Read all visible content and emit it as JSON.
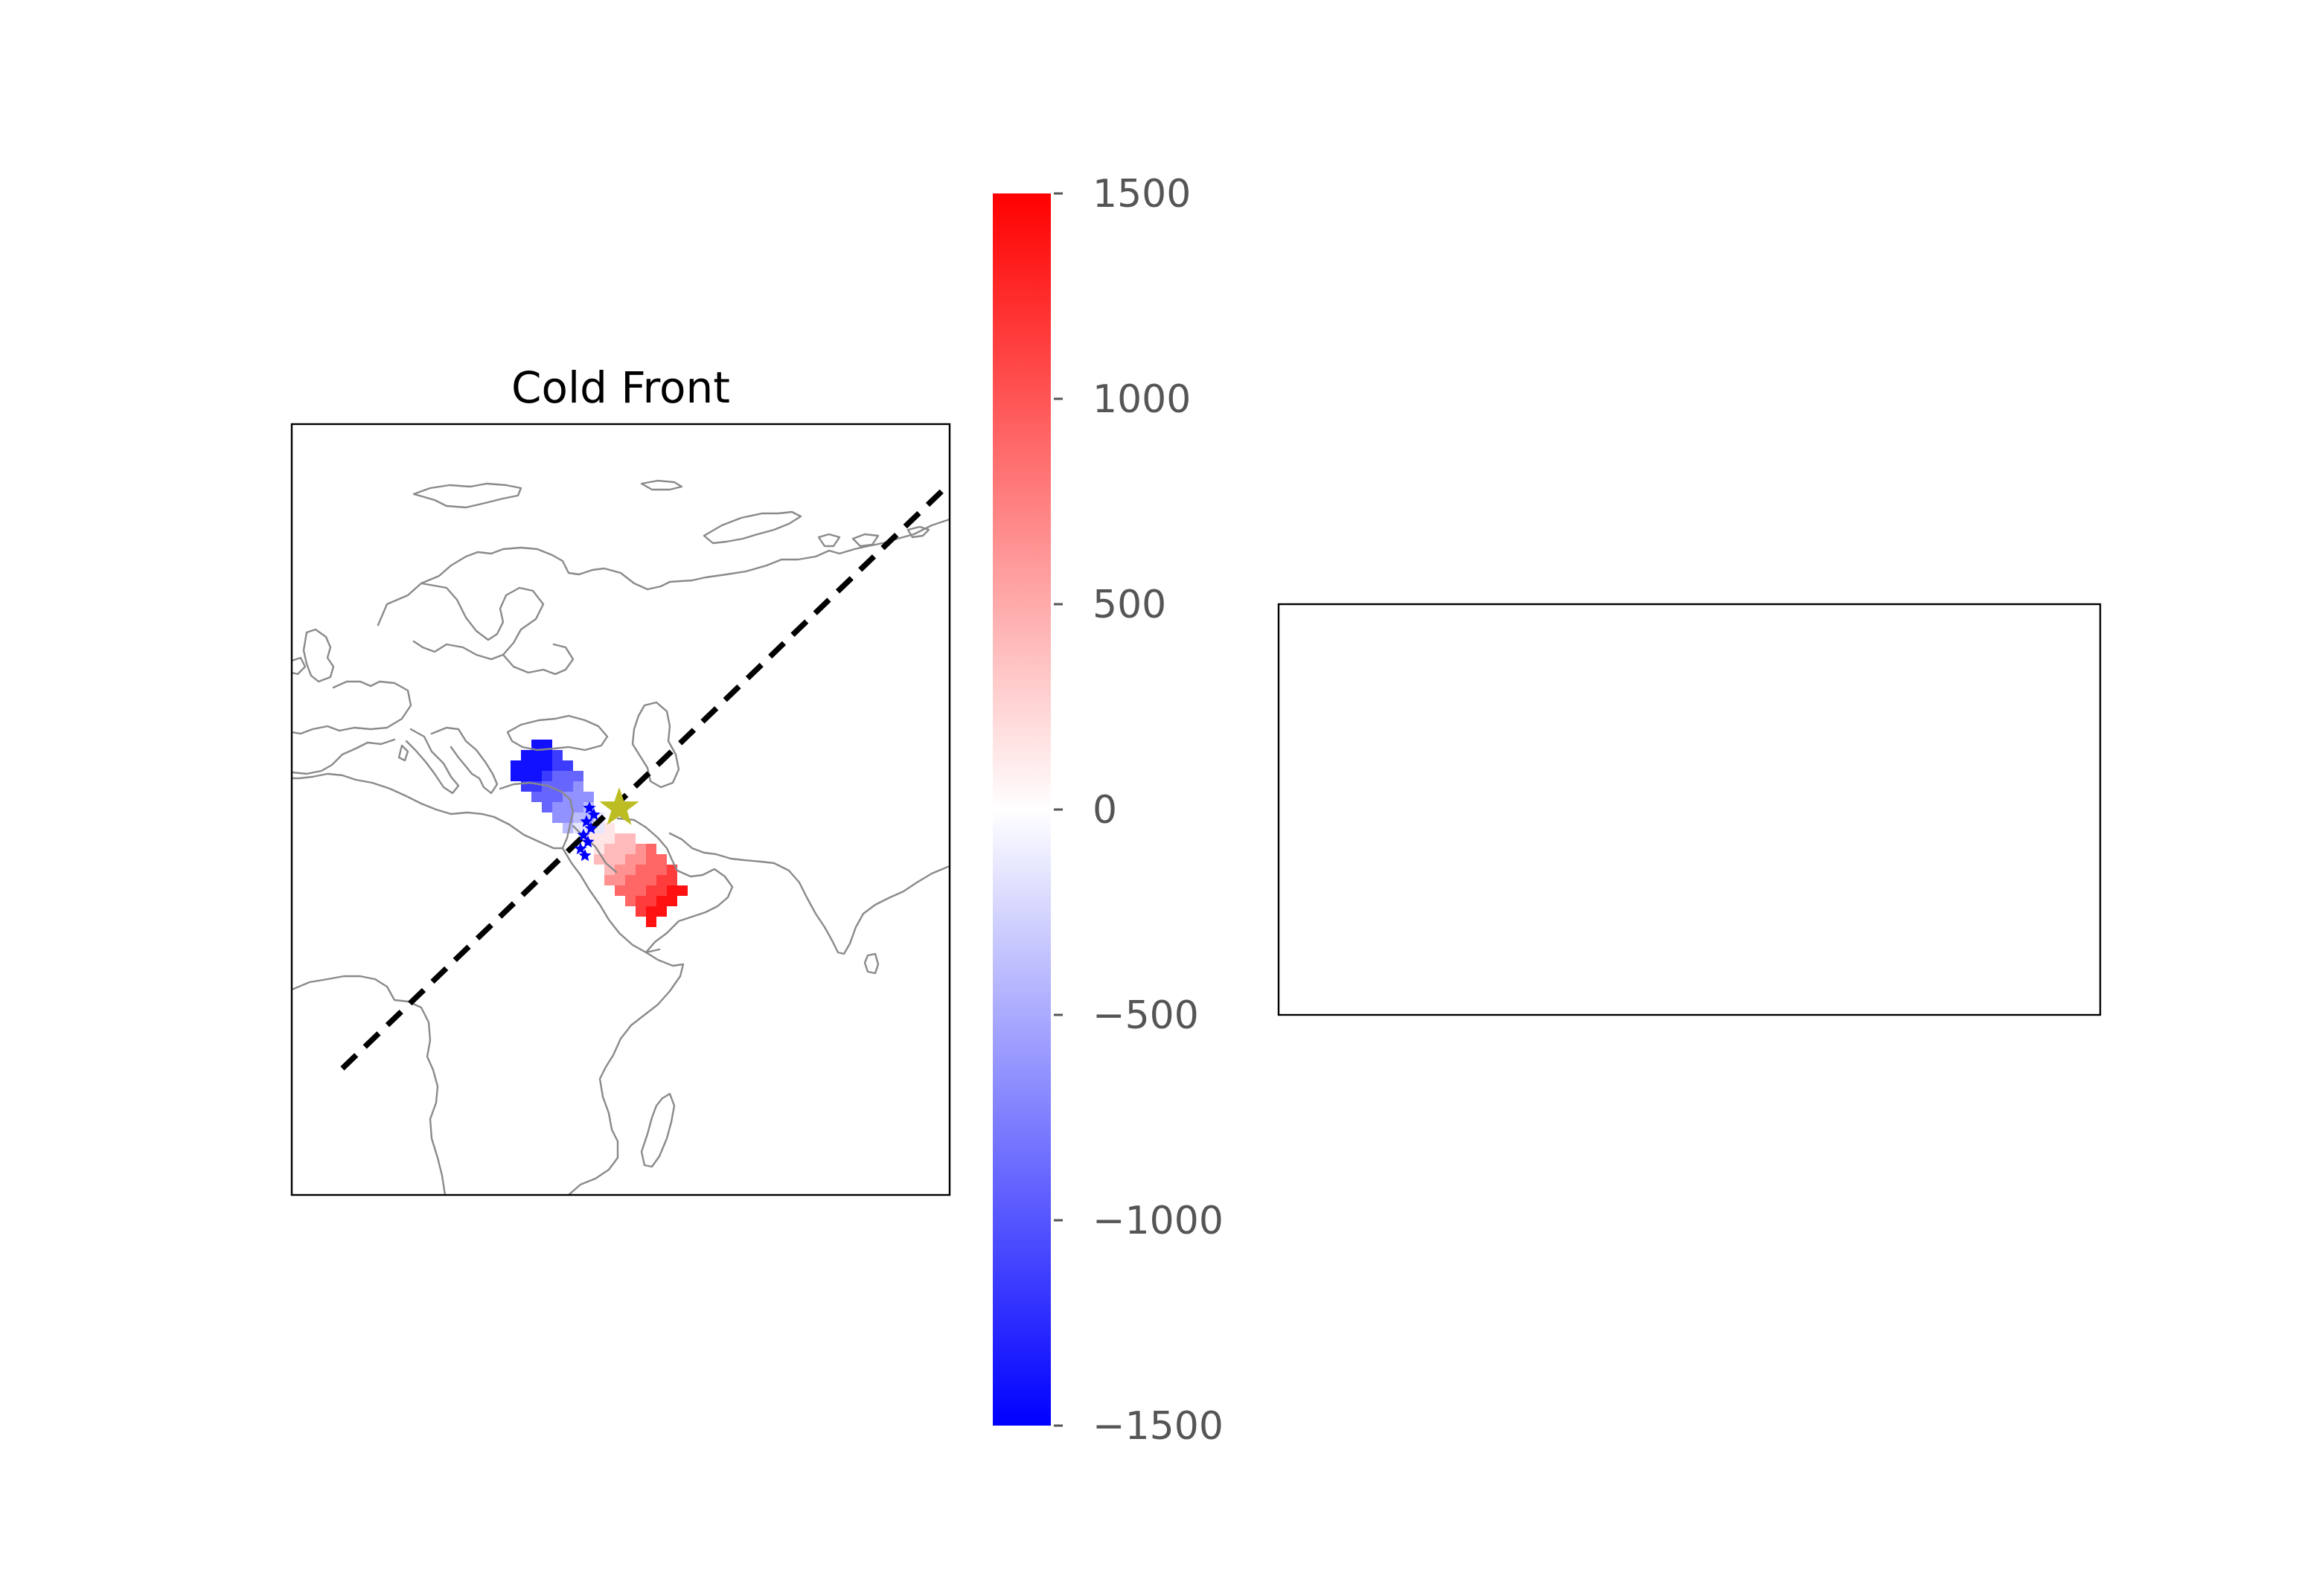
{
  "figure": {
    "map_panel": {
      "title": "Cold Front",
      "front_line": {
        "style": "dashed",
        "color": "#000000"
      },
      "center_marker": {
        "symbol": "star",
        "color": "#bcbd22"
      },
      "station_markers": {
        "symbol": "star",
        "color": "#0000ff",
        "count": 8
      }
    },
    "colorbar": {
      "colormap": "bwr",
      "min": -1500,
      "max": 1500,
      "low_color": "#0000ff",
      "mid_color": "#ffffff",
      "high_color": "#ff0000",
      "ticks": [
        {
          "value": 1500,
          "label": "1500"
        },
        {
          "value": 1000,
          "label": "1000"
        },
        {
          "value": 500,
          "label": "500"
        },
        {
          "value": 0,
          "label": "0"
        },
        {
          "value": -500,
          "label": "−500"
        },
        {
          "value": -1000,
          "label": "−1000"
        },
        {
          "value": -1500,
          "label": "−1500"
        }
      ]
    },
    "secondary_panel": {
      "content": "empty"
    }
  },
  "chart_data": {
    "type": "heatmap",
    "title": "Cold Front",
    "colorbar_range": [
      -1500,
      1500
    ],
    "colorbar_ticks": [
      -1500,
      -1000,
      -500,
      0,
      500,
      1000,
      1500
    ],
    "cell_values_along_front": [
      -1400,
      -1150,
      -900,
      -650,
      -400,
      -150,
      150,
      400,
      650,
      900,
      1150,
      1400
    ]
  }
}
